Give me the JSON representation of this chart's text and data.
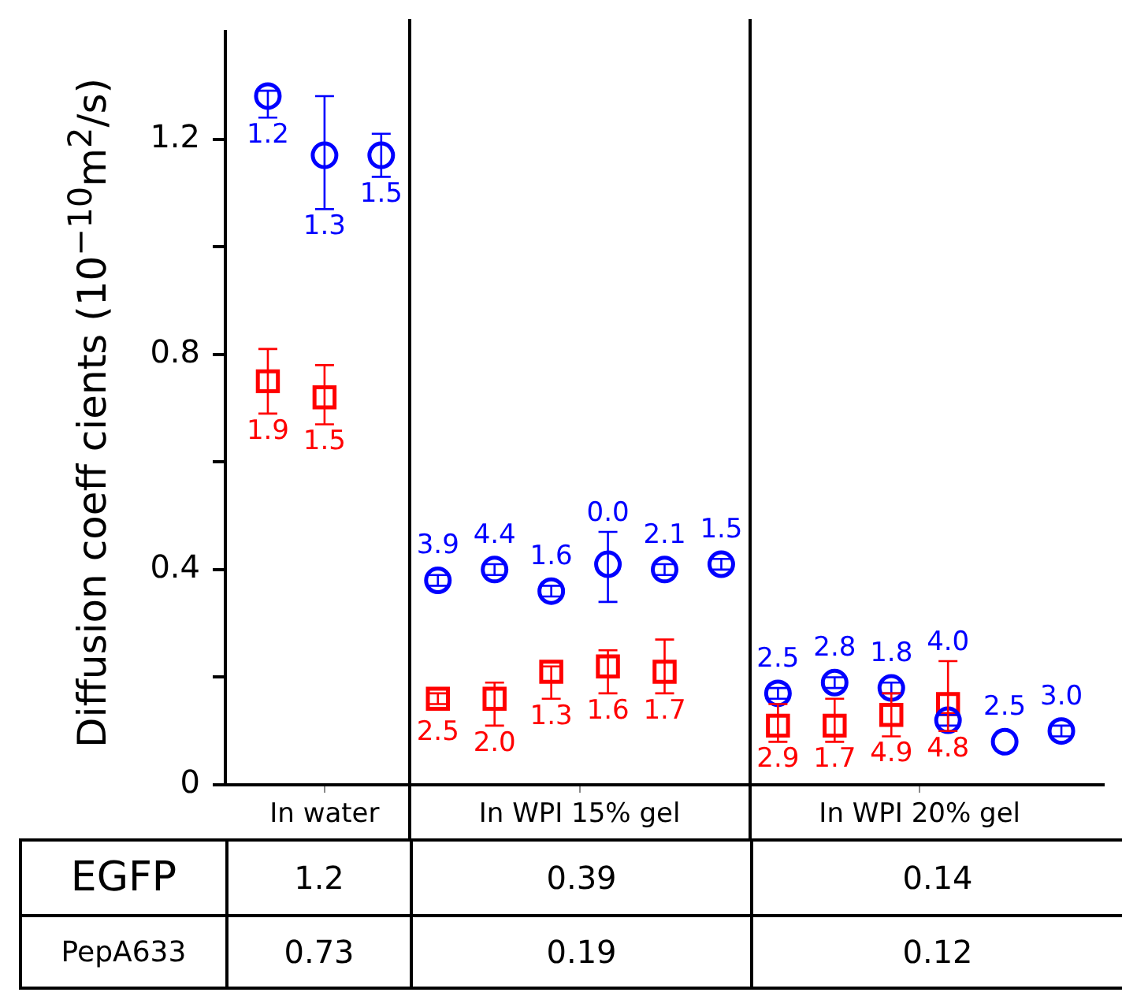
{
  "chart_data": {
    "type": "scatter",
    "ylabel": "Diffusion coeff cients (10$^{−10}$m$^{2}$/s)",
    "categories": [
      null,
      null,
      null,
      "In water",
      null,
      null,
      null,
      null,
      null,
      null,
      null,
      null,
      "In WPI 15% gel",
      null,
      null,
      null,
      null,
      null,
      null,
      null,
      null,
      null,
      null,
      null,
      "In WPI 20% gel",
      null,
      null,
      null,
      null,
      null,
      null
    ],
    "ylim": [
      0,
      1.4
    ],
    "yticks": [
      0,
      {
        "value": 0.2,
        "label": null
      },
      0.4,
      {
        "value": 0.6,
        "label": null
      },
      0.8,
      {
        "value": 1.0,
        "label": null
      },
      1.2
    ],
    "grid": false,
    "legend": false,
    "series": [
      {
        "color": "#0000ff",
        "marker": "circle",
        "values": [
          null,
          1.28,
          null,
          1.17,
          null,
          1.17,
          null,
          0.38,
          null,
          0.4,
          null,
          0.36,
          null,
          0.41,
          null,
          0.4,
          null,
          0.41,
          null,
          0.17,
          null,
          0.19,
          null,
          0.18,
          null,
          0.12,
          null,
          0.08,
          null,
          0.1,
          null
        ],
        "errors": [
          null,
          [
            1.24,
            1.29
          ],
          null,
          [
            1.07,
            1.28
          ],
          null,
          [
            1.13,
            1.21
          ],
          null,
          [
            0.37,
            0.39
          ],
          null,
          [
            0.39,
            0.41
          ],
          null,
          [
            0.35,
            0.37
          ],
          null,
          [
            0.34,
            0.47
          ],
          null,
          [
            0.39,
            0.41
          ],
          null,
          [
            0.4,
            0.42
          ],
          null,
          [
            0.16,
            0.18
          ],
          null,
          [
            0.18,
            0.2
          ],
          null,
          [
            0.17,
            0.19
          ],
          null,
          [
            0.11,
            0.13
          ],
          null,
          null,
          null,
          [
            0.09,
            0.11
          ],
          null
        ]
      },
      {
        "color": "#ff0000",
        "marker": "square",
        "values": [
          null,
          0.75,
          null,
          0.72,
          null,
          null,
          null,
          0.16,
          null,
          0.16,
          null,
          0.21,
          null,
          0.22,
          null,
          0.21,
          null,
          null,
          null,
          0.11,
          null,
          0.11,
          null,
          0.13,
          null,
          0.15,
          null,
          null,
          null,
          null,
          null
        ],
        "errors": [
          null,
          [
            0.69,
            0.81
          ],
          null,
          [
            0.67,
            0.78
          ],
          null,
          null,
          null,
          [
            0.15,
            0.17
          ],
          null,
          [
            0.11,
            0.19
          ],
          null,
          [
            0.16,
            0.22
          ],
          null,
          [
            0.17,
            0.25
          ],
          null,
          [
            0.17,
            0.27
          ],
          null,
          null,
          null,
          [
            0.08,
            0.15
          ],
          null,
          [
            0.08,
            0.16
          ],
          null,
          [
            0.09,
            0.17
          ],
          null,
          [
            0.1,
            0.23
          ],
          null,
          null,
          null,
          null,
          null
        ]
      }
    ],
    "annotations": [
      "1.2",
      "1.3",
      "1.5",
      "3.9",
      "4.4",
      "1.6",
      "0.0",
      "2.1",
      "1.5",
      "2.5",
      "2.8",
      "1.8",
      "4.0",
      "2.5",
      "3.0",
      "1.9",
      "1.5",
      "2.5",
      "2.0",
      "1.3",
      "1.6",
      "1.7",
      "2.9",
      "1.7",
      "4.9",
      "4.8",
      "EGFP",
      "1.2",
      "0.39",
      "0.14",
      "PepA633",
      "0.73",
      "0.19",
      "0.12"
    ]
  }
}
